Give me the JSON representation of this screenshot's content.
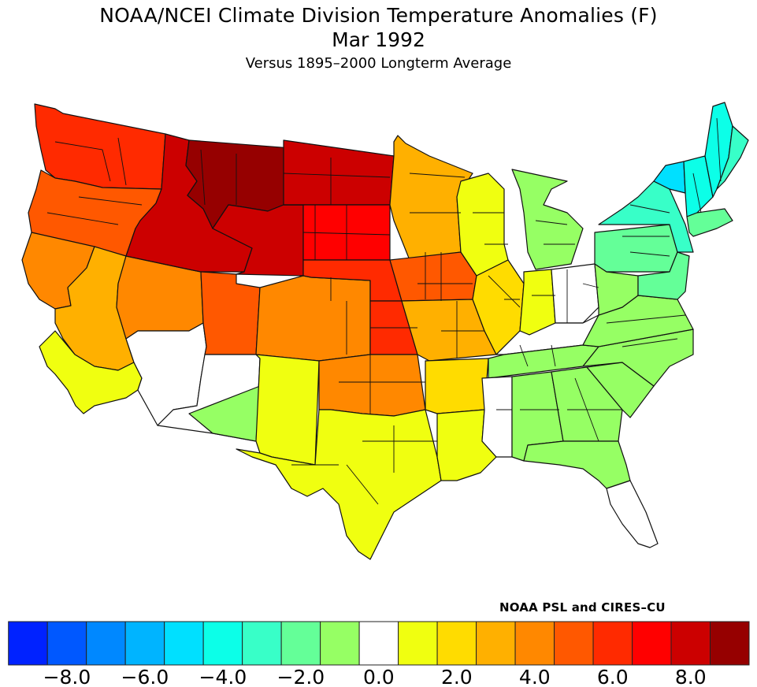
{
  "header": {
    "title": "NOAA/NCEI Climate Division Temperature Anomalies (F)",
    "period": "Mar 1992",
    "subtitle": "Versus 1895–2000 Longterm Average"
  },
  "credit": "NOAA PSL and CIRES–CU",
  "chart_data": {
    "type": "heatmap",
    "title": "NOAA/NCEI Climate Division Temperature Anomalies (F)",
    "subtitle": "Versus 1895–2000 Longterm Average",
    "period": "Mar 1992",
    "units": "F",
    "colorbar": {
      "bins": [
        {
          "range": [
            -9.5,
            -8.5
          ],
          "color": "#0022ff"
        },
        {
          "range": [
            -8.5,
            -7.5
          ],
          "color": "#0058ff"
        },
        {
          "range": [
            -7.5,
            -6.5
          ],
          "color": "#0088ff"
        },
        {
          "range": [
            -6.5,
            -5.5
          ],
          "color": "#00b4ff"
        },
        {
          "range": [
            -5.5,
            -4.5
          ],
          "color": "#00e0ff"
        },
        {
          "range": [
            -4.5,
            -3.5
          ],
          "color": "#0cffe8"
        },
        {
          "range": [
            -3.5,
            -2.5
          ],
          "color": "#38ffc8"
        },
        {
          "range": [
            -2.5,
            -1.5
          ],
          "color": "#64ff98"
        },
        {
          "range": [
            -1.5,
            -0.5
          ],
          "color": "#96ff64"
        },
        {
          "range": [
            -0.5,
            0.5
          ],
          "color": "#ffffff"
        },
        {
          "range": [
            0.5,
            1.5
          ],
          "color": "#f0ff10"
        },
        {
          "range": [
            1.5,
            2.5
          ],
          "color": "#ffdc00"
        },
        {
          "range": [
            2.5,
            3.5
          ],
          "color": "#ffb000"
        },
        {
          "range": [
            3.5,
            4.5
          ],
          "color": "#ff8800"
        },
        {
          "range": [
            4.5,
            5.5
          ],
          "color": "#ff5800"
        },
        {
          "range": [
            5.5,
            6.5
          ],
          "color": "#ff2a00"
        },
        {
          "range": [
            6.5,
            7.5
          ],
          "color": "#ff0000"
        },
        {
          "range": [
            7.5,
            8.5
          ],
          "color": "#cc0000"
        },
        {
          "range": [
            8.5,
            9.5
          ],
          "color": "#960000"
        }
      ],
      "tick_labels": [
        "−8.0",
        "−6.0",
        "−4.0",
        "−2.0",
        "0.0",
        "2.0",
        "4.0",
        "6.0",
        "8.0"
      ],
      "tick_values": [
        -8,
        -6,
        -4,
        -2,
        0,
        2,
        4,
        6,
        8
      ]
    },
    "regions": [
      {
        "name": "Washington",
        "anomaly": 6
      },
      {
        "name": "Oregon",
        "anomaly": 5
      },
      {
        "name": "California North",
        "anomaly": 4
      },
      {
        "name": "California Central",
        "anomaly": 3
      },
      {
        "name": "California South",
        "anomaly": 1
      },
      {
        "name": "Nevada North",
        "anomaly": 4
      },
      {
        "name": "Nevada South",
        "anomaly": 0
      },
      {
        "name": "Idaho",
        "anomaly": 8
      },
      {
        "name": "Montana",
        "anomaly": 9
      },
      {
        "name": "Wyoming",
        "anomaly": 8
      },
      {
        "name": "Utah",
        "anomaly": 5
      },
      {
        "name": "Colorado",
        "anomaly": 4
      },
      {
        "name": "Arizona",
        "anomaly": 0
      },
      {
        "name": "Arizona Southeast",
        "anomaly": -1
      },
      {
        "name": "New Mexico",
        "anomaly": 1
      },
      {
        "name": "North Dakota",
        "anomaly": 8
      },
      {
        "name": "South Dakota",
        "anomaly": 7
      },
      {
        "name": "Nebraska",
        "anomaly": 6
      },
      {
        "name": "Kansas",
        "anomaly": 6
      },
      {
        "name": "Oklahoma",
        "anomaly": 4
      },
      {
        "name": "Texas",
        "anomaly": 1
      },
      {
        "name": "Minnesota",
        "anomaly": 3
      },
      {
        "name": "Iowa",
        "anomaly": 5
      },
      {
        "name": "Missouri",
        "anomaly": 3
      },
      {
        "name": "Arkansas",
        "anomaly": 2
      },
      {
        "name": "Louisiana",
        "anomaly": 1
      },
      {
        "name": "Wisconsin",
        "anomaly": 1
      },
      {
        "name": "Illinois",
        "anomaly": 2
      },
      {
        "name": "Michigan",
        "anomaly": -1
      },
      {
        "name": "Indiana",
        "anomaly": 1
      },
      {
        "name": "Ohio",
        "anomaly": 0
      },
      {
        "name": "Kentucky",
        "anomaly": 0
      },
      {
        "name": "Tennessee",
        "anomaly": -1
      },
      {
        "name": "Mississippi",
        "anomaly": 0
      },
      {
        "name": "Alabama",
        "anomaly": -1
      },
      {
        "name": "Georgia",
        "anomaly": -1
      },
      {
        "name": "Florida North",
        "anomaly": -1
      },
      {
        "name": "Florida South",
        "anomaly": 0
      },
      {
        "name": "South Carolina",
        "anomaly": -1
      },
      {
        "name": "North Carolina",
        "anomaly": -1
      },
      {
        "name": "Virginia",
        "anomaly": -1
      },
      {
        "name": "West Virginia",
        "anomaly": -1
      },
      {
        "name": "Pennsylvania",
        "anomaly": -2
      },
      {
        "name": "New York",
        "anomaly": -3
      },
      {
        "name": "New York North",
        "anomaly": -5
      },
      {
        "name": "Vermont/New Hampshire",
        "anomaly": -4
      },
      {
        "name": "Maine",
        "anomaly": -4
      },
      {
        "name": "Maine Coast",
        "anomaly": -3
      },
      {
        "name": "Southern New England",
        "anomaly": -2
      },
      {
        "name": "Mid-Atlantic Coast",
        "anomaly": -2
      }
    ]
  }
}
